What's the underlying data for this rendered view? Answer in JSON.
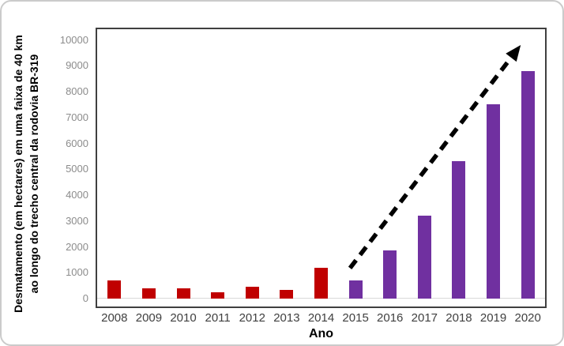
{
  "chart_data": {
    "type": "bar",
    "title": "",
    "categories": [
      "2008",
      "2009",
      "2010",
      "2011",
      "2012",
      "2013",
      "2014",
      "2015",
      "2016",
      "2017",
      "2018",
      "2019",
      "2020"
    ],
    "values": [
      700,
      400,
      400,
      250,
      450,
      350,
      1200,
      700,
      1850,
      3200,
      5300,
      7500,
      8800
    ],
    "bar_colors": [
      "#C00000",
      "#C00000",
      "#C00000",
      "#C00000",
      "#C00000",
      "#C00000",
      "#C00000",
      "#7030A0",
      "#7030A0",
      "#7030A0",
      "#7030A0",
      "#7030A0",
      "#7030A0"
    ],
    "xlabel": "Ano",
    "ylabel_line1": "Desmatamento (em hectares) em uma faixa de 40 km",
    "ylabel_line2": "ao longo do trecho central da rodovia BR-319",
    "ylim": [
      0,
      10000
    ],
    "ytick_step": 1000,
    "ytick_labels": [
      "0",
      "1000",
      "2000",
      "3000",
      "4000",
      "5000",
      "6000",
      "7000",
      "8000",
      "9000",
      "10000"
    ],
    "grid": "off",
    "legend": "none",
    "annotations": [
      {
        "type": "dashed-trend-arrow",
        "color": "#000000",
        "from_category": "2015",
        "to_category": "2020",
        "meaning": "steep upward trend of deforestation from 2015 to 2020"
      }
    ]
  },
  "colors": {
    "bar_red": "#C00000",
    "bar_purple": "#7030A0",
    "plot_border": "#3F3F3F",
    "zero_axis_line": "#D9D9D9",
    "y_tick_text": "#8C8C8C",
    "x_tick_text": "#404040",
    "title_text": "#000000",
    "figure_border": "#CBCBCB",
    "background": "#FFFFFF"
  }
}
